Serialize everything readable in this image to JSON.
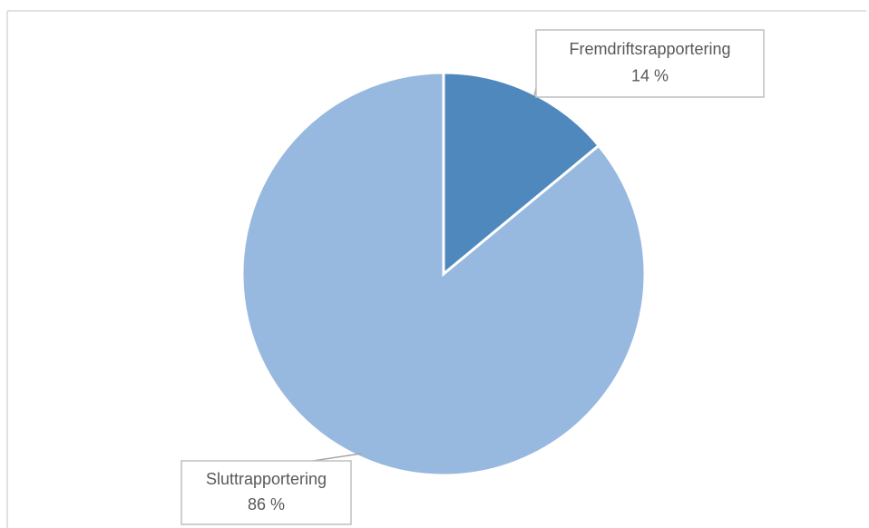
{
  "chart_data": {
    "type": "pie",
    "categories": [
      "Fremdriftsrapportering",
      "Sluttrapportering"
    ],
    "values": [
      14,
      86
    ],
    "value_labels": [
      "14 %",
      "86 %"
    ],
    "colors": [
      "#4f88bd",
      "#97b8df"
    ]
  }
}
